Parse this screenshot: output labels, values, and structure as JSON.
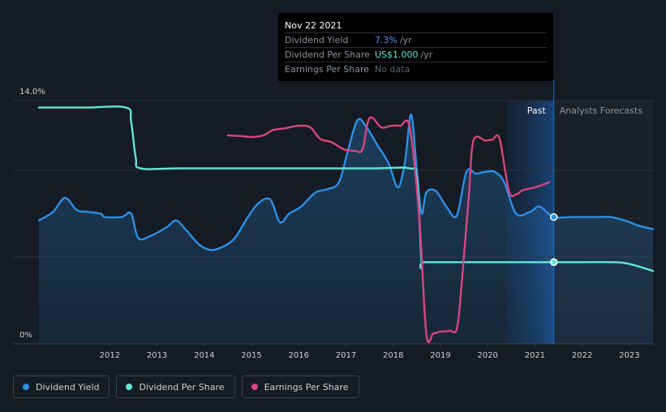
{
  "tooltip": {
    "date": "Nov 22 2021",
    "rows": [
      {
        "label": "Dividend Yield",
        "value": "7.3%",
        "unit": "/yr"
      },
      {
        "label": "Dividend Per Share",
        "value": "US$1.000",
        "unit": "/yr"
      },
      {
        "label": "Earnings Per Share",
        "value": "No data",
        "unit": ""
      }
    ]
  },
  "legend": [
    {
      "label": "Dividend Yield",
      "color": "#2d8fe4"
    },
    {
      "label": "Dividend Per Share",
      "color": "#62e7d3"
    },
    {
      "label": "Earnings Per Share",
      "color": "#d9457f"
    }
  ],
  "chart_data": {
    "type": "line",
    "title": "",
    "xlabel": "",
    "ylabel": "",
    "xlim": [
      2011.0,
      2024.0
    ],
    "ylim": [
      0,
      14.0
    ],
    "y_tick_labels": [
      {
        "value": 14.0,
        "label": "14.0%"
      },
      {
        "value": 0,
        "label": "0%"
      }
    ],
    "x_ticks": [
      2012,
      2013,
      2014,
      2015,
      2016,
      2017,
      2018,
      2019,
      2020,
      2021,
      2022,
      2023
    ],
    "past_label": "Past",
    "forecast_label": "Analysts Forecasts",
    "past_split": 2021.9,
    "highlight_start": 2020.9,
    "grid": true,
    "series": [
      {
        "name": "Dividend Yield",
        "color": "#2d8fe4",
        "area": true,
        "points": [
          [
            2011.0,
            7.1
          ],
          [
            2011.3,
            7.6
          ],
          [
            2011.55,
            8.4
          ],
          [
            2011.8,
            7.7
          ],
          [
            2012.0,
            7.6
          ],
          [
            2012.3,
            7.5
          ],
          [
            2012.4,
            7.3
          ],
          [
            2012.75,
            7.3
          ],
          [
            2012.95,
            7.5
          ],
          [
            2013.1,
            6.1
          ],
          [
            2013.35,
            6.2
          ],
          [
            2013.7,
            6.7
          ],
          [
            2013.9,
            7.1
          ],
          [
            2014.1,
            6.6
          ],
          [
            2014.4,
            5.7
          ],
          [
            2014.65,
            5.4
          ],
          [
            2014.9,
            5.6
          ],
          [
            2015.15,
            6.1
          ],
          [
            2015.4,
            7.2
          ],
          [
            2015.65,
            8.1
          ],
          [
            2015.9,
            8.3
          ],
          [
            2016.1,
            7.0
          ],
          [
            2016.3,
            7.5
          ],
          [
            2016.55,
            7.9
          ],
          [
            2016.85,
            8.7
          ],
          [
            2017.1,
            8.9
          ],
          [
            2017.35,
            9.3
          ],
          [
            2017.55,
            11.2
          ],
          [
            2017.75,
            12.9
          ],
          [
            2017.95,
            12.4
          ],
          [
            2018.15,
            11.5
          ],
          [
            2018.4,
            10.4
          ],
          [
            2018.6,
            9.0
          ],
          [
            2018.75,
            10.5
          ],
          [
            2018.88,
            13.2
          ],
          [
            2019.0,
            10.0
          ],
          [
            2019.1,
            7.5
          ],
          [
            2019.2,
            8.7
          ],
          [
            2019.4,
            8.8
          ],
          [
            2019.65,
            7.8
          ],
          [
            2019.85,
            7.4
          ],
          [
            2020.05,
            9.9
          ],
          [
            2020.25,
            9.8
          ],
          [
            2020.45,
            9.9
          ],
          [
            2020.65,
            9.9
          ],
          [
            2020.85,
            9.3
          ],
          [
            2021.1,
            7.5
          ],
          [
            2021.4,
            7.6
          ],
          [
            2021.6,
            7.9
          ],
          [
            2021.9,
            7.3
          ],
          [
            2022.3,
            7.3
          ],
          [
            2022.8,
            7.3
          ],
          [
            2023.1,
            7.3
          ],
          [
            2023.4,
            7.1
          ],
          [
            2023.7,
            6.8
          ],
          [
            2024.0,
            6.6
          ]
        ]
      },
      {
        "name": "Dividend Per Share",
        "color": "#62e7d3",
        "area": false,
        "points": [
          [
            2011.0,
            13.6
          ],
          [
            2012.0,
            13.6
          ],
          [
            2012.85,
            13.6
          ],
          [
            2012.95,
            12.8
          ],
          [
            2013.05,
            10.7
          ],
          [
            2013.15,
            10.1
          ],
          [
            2014.0,
            10.1
          ],
          [
            2016.0,
            10.1
          ],
          [
            2018.0,
            10.1
          ],
          [
            2018.85,
            10.1
          ],
          [
            2019.0,
            9.5
          ],
          [
            2019.1,
            4.7
          ],
          [
            2019.15,
            4.7
          ],
          [
            2020.0,
            4.7
          ],
          [
            2021.0,
            4.7
          ],
          [
            2021.9,
            4.7
          ],
          [
            2022.5,
            4.7
          ],
          [
            2023.15,
            4.7
          ],
          [
            2023.5,
            4.6
          ],
          [
            2024.0,
            4.2
          ]
        ]
      },
      {
        "name": "Earnings Per Share",
        "color": "#d9457f",
        "area": false,
        "points": [
          [
            2015.0,
            12.0
          ],
          [
            2015.3,
            11.95
          ],
          [
            2015.5,
            11.9
          ],
          [
            2015.75,
            12.0
          ],
          [
            2015.95,
            12.3
          ],
          [
            2016.2,
            12.4
          ],
          [
            2016.5,
            12.55
          ],
          [
            2016.75,
            12.45
          ],
          [
            2016.95,
            11.8
          ],
          [
            2017.2,
            11.6
          ],
          [
            2017.45,
            11.2
          ],
          [
            2017.7,
            11.1
          ],
          [
            2017.85,
            11.2
          ],
          [
            2018.0,
            13.0
          ],
          [
            2018.25,
            12.45
          ],
          [
            2018.45,
            12.55
          ],
          [
            2018.65,
            12.55
          ],
          [
            2018.85,
            12.45
          ],
          [
            2019.05,
            7.3
          ],
          [
            2019.2,
            0.6
          ],
          [
            2019.35,
            0.6
          ],
          [
            2019.5,
            0.7
          ],
          [
            2019.7,
            0.75
          ],
          [
            2019.85,
            0.9
          ],
          [
            2019.95,
            3.5
          ],
          [
            2020.1,
            8.5
          ],
          [
            2020.2,
            11.7
          ],
          [
            2020.45,
            11.7
          ],
          [
            2020.6,
            11.75
          ],
          [
            2020.75,
            11.8
          ],
          [
            2020.95,
            8.8
          ],
          [
            2021.1,
            8.6
          ],
          [
            2021.25,
            8.85
          ],
          [
            2021.5,
            9.0
          ],
          [
            2021.8,
            9.3
          ]
        ]
      }
    ]
  }
}
